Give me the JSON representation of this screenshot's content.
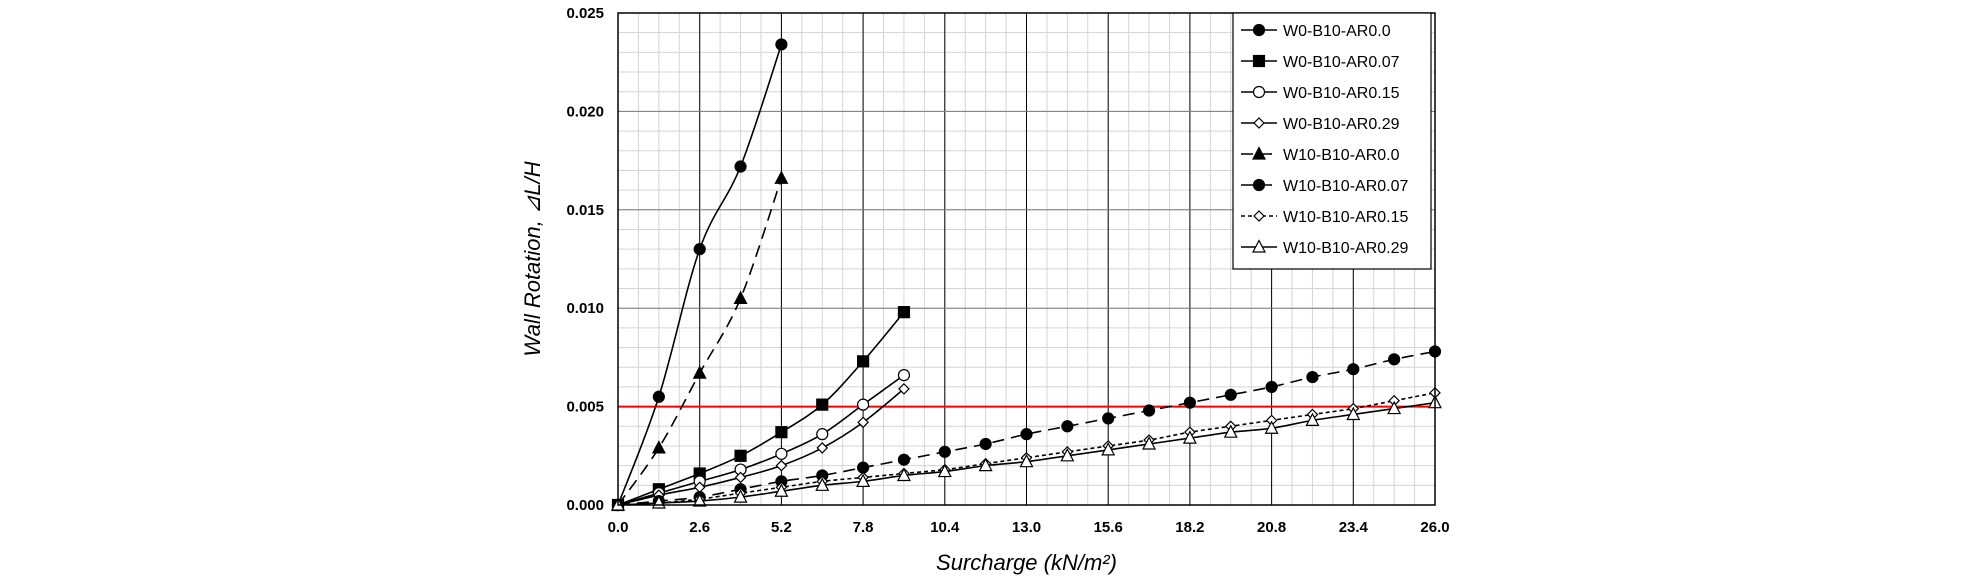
{
  "chart_data": {
    "type": "line",
    "xlabel": "Surcharge (kN/m²)",
    "ylabel": "Wall Rotation, ⊿L/H",
    "xlim": [
      0,
      26
    ],
    "ylim": [
      0,
      0.025
    ],
    "x_ticks": [
      0,
      2.6,
      5.2,
      7.8,
      10.4,
      13.0,
      15.6,
      18.2,
      20.8,
      23.4,
      26.0
    ],
    "x_tick_labels": [
      "0.0",
      "2.6",
      "5.2",
      "7.8",
      "10.4",
      "13.0",
      "15.6",
      "18.2",
      "20.8",
      "23.4",
      "26.0"
    ],
    "y_ticks": [
      0,
      0.005,
      0.01,
      0.015,
      0.02,
      0.025
    ],
    "y_tick_labels": [
      "0.000",
      "0.005",
      "0.010",
      "0.015",
      "0.020",
      "0.025"
    ],
    "grid": true,
    "legend_position": "top-right",
    "reference_line": {
      "y": 0.005,
      "color": "#ff0000"
    },
    "series": [
      {
        "name": "W0-B10-AR0.0",
        "marker": "circle-filled",
        "dash": "solid",
        "x": [
          0,
          1.3,
          2.6,
          3.9,
          5.2
        ],
        "y": [
          0,
          0.0055,
          0.013,
          0.0172,
          0.0234
        ]
      },
      {
        "name": "W0-B10-AR0.07",
        "marker": "square-filled",
        "dash": "solid",
        "x": [
          0,
          1.3,
          2.6,
          3.9,
          5.2,
          6.5,
          7.8,
          9.1
        ],
        "y": [
          0,
          0.0008,
          0.0016,
          0.0025,
          0.0037,
          0.0051,
          0.0073,
          0.0098
        ]
      },
      {
        "name": "W0-B10-AR0.15",
        "marker": "circle-open",
        "dash": "solid",
        "x": [
          0,
          1.3,
          2.6,
          3.9,
          5.2,
          6.5,
          7.8,
          9.1
        ],
        "y": [
          0,
          0.0006,
          0.0012,
          0.0018,
          0.0026,
          0.0036,
          0.0051,
          0.0066
        ]
      },
      {
        "name": "W0-B10-AR0.29",
        "marker": "diamond-open",
        "dash": "solid",
        "x": [
          0,
          1.3,
          2.6,
          3.9,
          5.2,
          6.5,
          7.8,
          9.1
        ],
        "y": [
          0,
          0.0005,
          0.0009,
          0.0014,
          0.002,
          0.0029,
          0.0042,
          0.0059
        ]
      },
      {
        "name": "W10-B10-AR0.0",
        "marker": "triangle-filled",
        "dash": "dashed",
        "x": [
          0,
          1.3,
          2.6,
          3.9,
          5.2
        ],
        "y": [
          0,
          0.0029,
          0.0067,
          0.0105,
          0.0166
        ]
      },
      {
        "name": "W10-B10-AR0.07",
        "marker": "circle-filled",
        "dash": "dashed",
        "x": [
          0,
          1.3,
          2.6,
          3.9,
          5.2,
          6.5,
          7.8,
          9.1,
          10.4,
          11.7,
          13.0,
          14.3,
          15.6,
          16.9,
          18.2,
          19.5,
          20.8,
          22.1,
          23.4,
          24.7,
          26.0
        ],
        "y": [
          0,
          0.0002,
          0.0004,
          0.0008,
          0.0012,
          0.0015,
          0.0019,
          0.0023,
          0.0027,
          0.0031,
          0.0036,
          0.004,
          0.0044,
          0.0048,
          0.0052,
          0.0056,
          0.006,
          0.0065,
          0.0069,
          0.0074,
          0.0078
        ]
      },
      {
        "name": "W10-B10-AR0.15",
        "marker": "diamond-open",
        "dash": "dotted",
        "x": [
          0,
          1.3,
          2.6,
          3.9,
          5.2,
          6.5,
          7.8,
          9.1,
          10.4,
          11.7,
          13.0,
          14.3,
          15.6,
          16.9,
          18.2,
          19.5,
          20.8,
          22.1,
          23.4,
          24.7,
          26.0
        ],
        "y": [
          0,
          0.0001,
          0.0003,
          0.0006,
          0.0009,
          0.0012,
          0.0014,
          0.0016,
          0.0018,
          0.0021,
          0.0024,
          0.0027,
          0.003,
          0.0033,
          0.0037,
          0.004,
          0.0043,
          0.0046,
          0.0049,
          0.0053,
          0.0057
        ]
      },
      {
        "name": "W10-B10-AR0.29",
        "marker": "triangle-open",
        "dash": "solid",
        "x": [
          0,
          1.3,
          2.6,
          3.9,
          5.2,
          6.5,
          7.8,
          9.1,
          10.4,
          11.7,
          13.0,
          14.3,
          15.6,
          16.9,
          18.2,
          19.5,
          20.8,
          22.1,
          23.4,
          24.7,
          26.0
        ],
        "y": [
          0,
          0.0001,
          0.0002,
          0.0004,
          0.0007,
          0.001,
          0.0012,
          0.0015,
          0.0017,
          0.002,
          0.0022,
          0.0025,
          0.0028,
          0.0031,
          0.0034,
          0.0037,
          0.0039,
          0.0043,
          0.0046,
          0.0049,
          0.0052
        ]
      }
    ]
  }
}
